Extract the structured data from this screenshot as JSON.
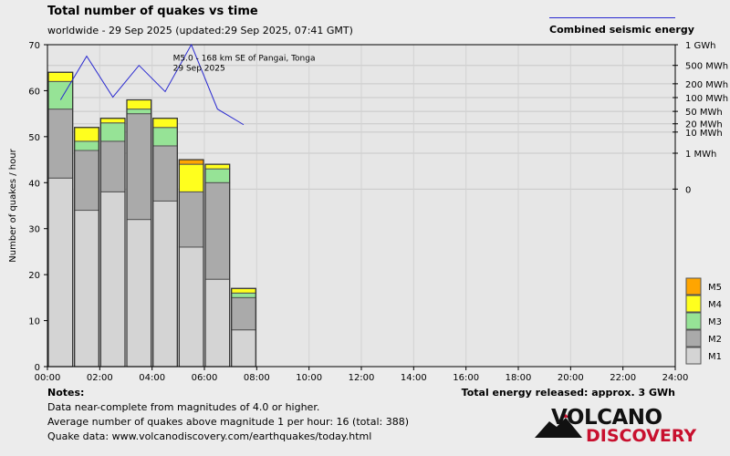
{
  "header": {
    "title": "Total number of quakes vs time",
    "subtitle": "worldwide - 29 Sep 2025 (updated:29 Sep 2025, 07:41 GMT)",
    "energy_legend": "Combined seismic energy"
  },
  "chart_data": {
    "type": "bar",
    "stacked": true,
    "ylabel": "Number of quakes / hour",
    "ylim": [
      0,
      70
    ],
    "yticks": [
      "0",
      "10",
      "20",
      "30",
      "40",
      "50",
      "60",
      "70"
    ],
    "xticks": [
      "00:00",
      "02:00",
      "04:00",
      "06:00",
      "08:00",
      "10:00",
      "12:00",
      "14:00",
      "16:00",
      "18:00",
      "20:00",
      "22:00",
      "24:00"
    ],
    "hours": [
      0,
      1,
      2,
      3,
      4,
      5,
      6,
      7
    ],
    "series": [
      {
        "name": "M1",
        "color": "#d4d4d4",
        "values": [
          41,
          34,
          38,
          32,
          36,
          26,
          19,
          8
        ]
      },
      {
        "name": "M2",
        "color": "#aaaaaa",
        "values": [
          15,
          13,
          11,
          23,
          12,
          12,
          21,
          7
        ]
      },
      {
        "name": "M3",
        "color": "#96e396",
        "values": [
          6,
          2,
          4,
          1,
          4,
          0,
          3,
          1
        ]
      },
      {
        "name": "M4",
        "color": "#ffff1e",
        "values": [
          2,
          3,
          1,
          2,
          2,
          6,
          1,
          1
        ]
      },
      {
        "name": "M5",
        "color": "#ffa500",
        "values": [
          0,
          0,
          0,
          0,
          0,
          1,
          0,
          0
        ]
      }
    ],
    "energy_axis_labels": [
      {
        "label": "1 GWh",
        "value": 70
      },
      {
        "label": "500 MWh",
        "value": 65.5
      },
      {
        "label": "200 MWh",
        "value": 61.5
      },
      {
        "label": "100 MWh",
        "value": 58.5
      },
      {
        "label": "50 MWh",
        "value": 55.5
      },
      {
        "label": "20 MWh",
        "value": 52.8
      },
      {
        "label": "10 MWh",
        "value": 51
      },
      {
        "label": "1 MWh",
        "value": 46.4
      },
      {
        "label": "0",
        "value": 38.6
      }
    ],
    "energy_line": {
      "color": "#2a2ad0",
      "x": [
        0.5,
        1.5,
        2.5,
        3.5,
        4.5,
        5.5,
        6.5,
        7.5
      ],
      "y": [
        58,
        67.5,
        58.6,
        65.5,
        59.8,
        70,
        56,
        52.6
      ]
    },
    "annotation": {
      "line1": "M5.0 - 168 km SE of Pangai, Tonga",
      "line2": "29 Sep 2025",
      "x": 5.5,
      "y": 66.5
    }
  },
  "notes": {
    "title": "Notes:",
    "lines": [
      "Data near-complete from magnitudes of 4.0 or higher.",
      "Average number of quakes above magnitude 1 per hour: 16 (total: 388)",
      "Quake data: www.volcanodiscovery.com/earthquakes/today.html"
    ],
    "total_energy": "Total energy released: approx. 3 GWh"
  },
  "logo": {
    "top": "VOLCANO",
    "bottom": "DISCOVERY"
  }
}
